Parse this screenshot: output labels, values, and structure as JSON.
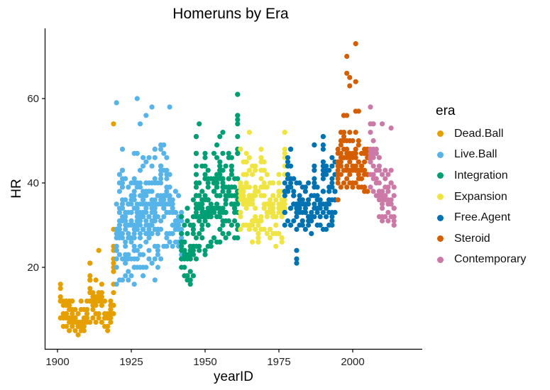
{
  "chart_data": {
    "type": "scatter",
    "title": "Homeruns by Era",
    "xlabel": "yearID",
    "ylabel": "HR",
    "xlim": [
      1895.7,
      2023.5
    ],
    "ylim": [
      0.7,
      76.6
    ],
    "x_ticks": [
      1900,
      1925,
      1950,
      1975,
      2000
    ],
    "y_ticks": [
      20,
      40,
      60
    ],
    "grid": false,
    "legend_title": "era",
    "legend_position": "right",
    "point_radius": 3.6,
    "series": [
      {
        "name": "Dead.Ball",
        "color": "#E69F00",
        "ranges": [
          [
            1901,
            8,
            16
          ],
          [
            1902,
            6,
            12
          ],
          [
            1903,
            6,
            12
          ],
          [
            1904,
            5,
            11
          ],
          [
            1905,
            6,
            10
          ],
          [
            1906,
            5,
            10
          ],
          [
            1907,
            4,
            9
          ],
          [
            1908,
            5,
            12
          ],
          [
            1909,
            5,
            10
          ],
          [
            1910,
            7,
            12
          ],
          [
            1911,
            7,
            21
          ],
          [
            1912,
            8,
            14
          ],
          [
            1913,
            7,
            17
          ],
          [
            1914,
            8,
            14
          ],
          [
            1915,
            7,
            16
          ],
          [
            1916,
            6,
            12
          ],
          [
            1917,
            5,
            9
          ],
          [
            1918,
            7,
            12
          ],
          [
            1919,
            9,
            29
          ]
        ],
        "outliers": [
          [
            1904,
            12
          ],
          [
            1905,
            12
          ],
          [
            1911,
            21
          ],
          [
            1914,
            24
          ],
          [
            1919,
            54
          ],
          [
            1918,
            11
          ]
        ]
      },
      {
        "name": "Live.Ball",
        "color": "#56B4E9",
        "ranges": [
          [
            1920,
            16,
            35
          ],
          [
            1921,
            17,
            42
          ],
          [
            1922,
            17,
            48
          ],
          [
            1923,
            18,
            41
          ],
          [
            1924,
            17,
            39
          ],
          [
            1925,
            18,
            40
          ],
          [
            1926,
            16,
            47
          ],
          [
            1927,
            20,
            47
          ],
          [
            1928,
            20,
            43
          ],
          [
            1929,
            18,
            46
          ],
          [
            1930,
            20,
            45
          ],
          [
            1931,
            22,
            46
          ],
          [
            1932,
            21,
            44
          ],
          [
            1933,
            17,
            48
          ],
          [
            1934,
            20,
            40
          ],
          [
            1935,
            22,
            49
          ],
          [
            1936,
            25,
            49
          ],
          [
            1937,
            25,
            46
          ],
          [
            1938,
            26,
            42
          ],
          [
            1939,
            25,
            36
          ],
          [
            1940,
            26,
            38
          ],
          [
            1941,
            25,
            37
          ],
          [
            1942,
            23,
            33
          ]
        ],
        "outliers": [
          [
            1920,
            59
          ],
          [
            1921,
            40
          ],
          [
            1927,
            60
          ],
          [
            1928,
            54
          ],
          [
            1930,
            56
          ],
          [
            1932,
            58
          ],
          [
            1938,
            58
          ],
          [
            1933,
            48
          ],
          [
            1922,
            39
          ]
        ]
      },
      {
        "name": "Integration",
        "color": "#009E73",
        "ranges": [
          [
            1942,
            20,
            32
          ],
          [
            1943,
            18,
            30
          ],
          [
            1944,
            17,
            34
          ],
          [
            1945,
            16,
            30
          ],
          [
            1946,
            18,
            36
          ],
          [
            1947,
            22,
            51
          ],
          [
            1948,
            24,
            40
          ],
          [
            1949,
            27,
            44
          ],
          [
            1950,
            23,
            47
          ],
          [
            1951,
            25,
            43
          ],
          [
            1952,
            25,
            41
          ],
          [
            1953,
            27,
            47
          ],
          [
            1954,
            26,
            49
          ],
          [
            1955,
            26,
            51
          ],
          [
            1956,
            28,
            52
          ],
          [
            1957,
            27,
            44
          ],
          [
            1958,
            28,
            47
          ],
          [
            1959,
            30,
            46
          ],
          [
            1960,
            27,
            41
          ],
          [
            1961,
            27,
            61
          ]
        ],
        "outliers": [
          [
            1948,
            54
          ],
          [
            1961,
            61
          ],
          [
            1961,
            54
          ],
          [
            1947,
            51
          ],
          [
            1953,
            40
          ]
        ]
      },
      {
        "name": "Expansion",
        "color": "#F0E442",
        "ranges": [
          [
            1962,
            29,
            48
          ],
          [
            1963,
            30,
            45
          ],
          [
            1964,
            30,
            47
          ],
          [
            1965,
            29,
            46
          ],
          [
            1966,
            30,
            44
          ],
          [
            1967,
            31,
            44
          ],
          [
            1968,
            26,
            38
          ],
          [
            1969,
            29,
            48
          ],
          [
            1970,
            29,
            45
          ],
          [
            1971,
            28,
            42
          ],
          [
            1972,
            27,
            40
          ],
          [
            1973,
            28,
            40
          ],
          [
            1974,
            25,
            36
          ],
          [
            1975,
            28,
            42
          ],
          [
            1976,
            27,
            38
          ],
          [
            1977,
            30,
            52
          ]
        ],
        "outliers": [
          [
            1965,
            52
          ],
          [
            1977,
            52
          ],
          [
            1966,
            26
          ],
          [
            1967,
            29
          ],
          [
            1976,
            26
          ]
        ]
      },
      {
        "name": "Free.Agent",
        "color": "#0072B2",
        "ranges": [
          [
            1977,
            30,
            40
          ],
          [
            1978,
            31,
            46
          ],
          [
            1979,
            30,
            48
          ],
          [
            1980,
            31,
            41
          ],
          [
            1981,
            29,
            40
          ],
          [
            1982,
            30,
            40
          ],
          [
            1983,
            30,
            39
          ],
          [
            1984,
            29,
            39
          ],
          [
            1985,
            30,
            40
          ],
          [
            1986,
            28,
            37
          ],
          [
            1987,
            32,
            49
          ],
          [
            1988,
            30,
            39
          ],
          [
            1989,
            30,
            36
          ],
          [
            1990,
            29,
            51
          ],
          [
            1991,
            29,
            44
          ],
          [
            1992,
            30,
            43
          ],
          [
            1993,
            30,
            46
          ],
          [
            1994,
            33,
            45
          ]
        ],
        "outliers": [
          [
            1981,
            24
          ],
          [
            1981,
            22
          ],
          [
            1981,
            21
          ],
          [
            1990,
            51
          ],
          [
            1979,
            48
          ],
          [
            1987,
            49
          ]
        ]
      },
      {
        "name": "Steroid",
        "color": "#D55E00",
        "ranges": [
          [
            1995,
            36,
            48
          ],
          [
            1996,
            39,
            52
          ],
          [
            1997,
            40,
            56
          ],
          [
            1998,
            39,
            50
          ],
          [
            1999,
            40,
            52
          ],
          [
            2000,
            39,
            50
          ],
          [
            2001,
            40,
            52
          ],
          [
            2002,
            39,
            50
          ],
          [
            2003,
            39,
            47
          ],
          [
            2004,
            38,
            48
          ],
          [
            2005,
            38,
            48
          ]
        ],
        "outliers": [
          [
            1998,
            70
          ],
          [
            1998,
            66
          ],
          [
            1999,
            65
          ],
          [
            1999,
            63
          ],
          [
            2001,
            64
          ],
          [
            2001,
            73
          ],
          [
            1997,
            56
          ],
          [
            1998,
            56
          ],
          [
            2001,
            57
          ],
          [
            2002,
            57
          ],
          [
            1996,
            50
          ],
          [
            1995,
            40
          ]
        ]
      },
      {
        "name": "Contemporary",
        "color": "#CC79A7",
        "ranges": [
          [
            2006,
            39,
            52
          ],
          [
            2007,
            38,
            50
          ],
          [
            2008,
            37,
            48
          ],
          [
            2009,
            32,
            46
          ],
          [
            2010,
            31,
            42
          ],
          [
            2011,
            32,
            43
          ],
          [
            2012,
            31,
            42
          ],
          [
            2013,
            32,
            43
          ],
          [
            2014,
            30,
            39
          ]
        ],
        "outliers": [
          [
            2006,
            58
          ],
          [
            2006,
            54
          ],
          [
            2007,
            54
          ],
          [
            2010,
            54
          ],
          [
            2013,
            53
          ],
          [
            2014,
            30
          ]
        ]
      }
    ]
  }
}
